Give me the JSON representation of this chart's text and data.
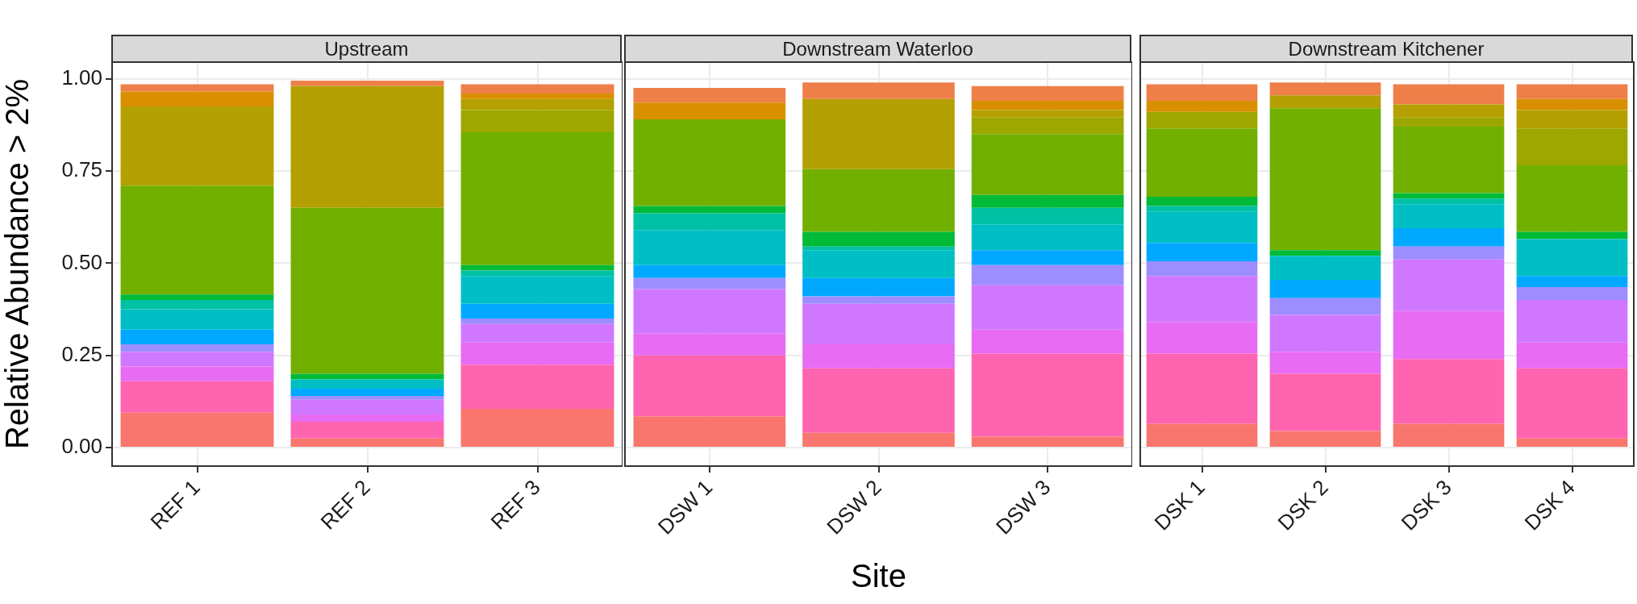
{
  "chart_data": [
    {
      "type": "bar",
      "title": "Upstream",
      "ylabel": "Relative Abundance > 2%",
      "stacked": true,
      "grid": true,
      "categories": [
        "REF 1",
        "REF 2",
        "REF 3"
      ],
      "ylim": [
        -0.05,
        1.045
      ],
      "yticks": [
        {
          "value": 0,
          "label": "0.00"
        },
        {
          "value": 0.25,
          "label": "0.25"
        },
        {
          "value": 0.5,
          "label": "0.50"
        },
        {
          "value": 0.75,
          "label": "0.75"
        },
        {
          "value": 1,
          "label": "1.00"
        }
      ],
      "series": [
        {
          "color": "#f8766d",
          "values": [
            0.095,
            0.025,
            0.105
          ]
        },
        {
          "color": "#ff64b0",
          "values": [
            0.085,
            0.045,
            0.12
          ]
        },
        {
          "color": "#e76bf3",
          "values": [
            0.04,
            0.02,
            0.06
          ]
        },
        {
          "color": "#cf78ff",
          "values": [
            0.04,
            0.04,
            0.05
          ]
        },
        {
          "color": "#9d8dff",
          "values": [
            0.02,
            0.01,
            0.015
          ]
        },
        {
          "color": "#00a9ff",
          "values": [
            0.04,
            0.02,
            0.04
          ]
        },
        {
          "color": "#00bfc4",
          "values": [
            0.055,
            0.025,
            0.075
          ]
        },
        {
          "color": "#00c1a3",
          "values": [
            0.025,
            0,
            0.015
          ]
        },
        {
          "color": "#00ba38",
          "values": [
            0.015,
            0.015,
            0.015
          ]
        },
        {
          "color": "#72b000",
          "values": [
            0.295,
            0.45,
            0.36
          ]
        },
        {
          "color": "#9da700",
          "values": [
            0,
            0,
            0.06
          ]
        },
        {
          "color": "#b4a000",
          "values": [
            0.215,
            0.33,
            0.03
          ]
        },
        {
          "color": "#d89000",
          "values": [
            0.04,
            0,
            0.015
          ]
        },
        {
          "color": "#ef7f49",
          "values": [
            0.02,
            0.015,
            0.025
          ]
        }
      ]
    },
    {
      "type": "bar",
      "title": "Downstream Waterloo",
      "xlabel": "Site",
      "stacked": true,
      "grid": true,
      "tick_labels": "x",
      "categories": [
        "DSW 1",
        "DSW 2",
        "DSW 3"
      ],
      "ylim": [
        -0.05,
        1.045
      ],
      "yticks": [
        0,
        0.25,
        0.5,
        0.75,
        1
      ],
      "series": [
        {
          "color": "#f8766d",
          "values": [
            0.085,
            0.04,
            0.03
          ]
        },
        {
          "color": "#ff64b0",
          "values": [
            0.165,
            0.175,
            0.225
          ]
        },
        {
          "color": "#e76bf3",
          "values": [
            0.06,
            0.065,
            0.065
          ]
        },
        {
          "color": "#cf78ff",
          "values": [
            0.12,
            0.11,
            0.12
          ]
        },
        {
          "color": "#9d8dff",
          "values": [
            0.03,
            0.02,
            0.055
          ]
        },
        {
          "color": "#00a9ff",
          "values": [
            0.035,
            0.05,
            0.04
          ]
        },
        {
          "color": "#00bfc4",
          "values": [
            0.095,
            0.075,
            0.07
          ]
        },
        {
          "color": "#00c1a3",
          "values": [
            0.045,
            0.01,
            0.045
          ]
        },
        {
          "color": "#00ba38",
          "values": [
            0.02,
            0.04,
            0.035
          ]
        },
        {
          "color": "#72b000",
          "values": [
            0.235,
            0.17,
            0.165
          ]
        },
        {
          "color": "#9da700",
          "values": [
            0,
            0,
            0.045
          ]
        },
        {
          "color": "#b4a000",
          "values": [
            0,
            0.19,
            0.02
          ]
        },
        {
          "color": "#d89000",
          "values": [
            0.045,
            0,
            0.025
          ]
        },
        {
          "color": "#ef7f49",
          "values": [
            0.04,
            0.045,
            0.04
          ]
        }
      ]
    },
    {
      "type": "bar",
      "title": "Downstream Kitchener",
      "stacked": true,
      "grid": true,
      "tick_labels": "x",
      "categories": [
        "DSK 1",
        "DSK 2",
        "DSK 3",
        "DSK 4"
      ],
      "ylim": [
        -0.05,
        1.045
      ],
      "yticks": [
        0,
        0.25,
        0.5,
        0.75,
        1
      ],
      "series": [
        {
          "color": "#f8766d",
          "values": [
            0.065,
            0.045,
            0.065,
            0.025
          ]
        },
        {
          "color": "#ff64b0",
          "values": [
            0.19,
            0.155,
            0.175,
            0.19
          ]
        },
        {
          "color": "#e76bf3",
          "values": [
            0.085,
            0.06,
            0.13,
            0.07
          ]
        },
        {
          "color": "#cf78ff",
          "values": [
            0.125,
            0.1,
            0.14,
            0.115
          ]
        },
        {
          "color": "#9d8dff",
          "values": [
            0.04,
            0.045,
            0.035,
            0.035
          ]
        },
        {
          "color": "#00a9ff",
          "values": [
            0.05,
            0.05,
            0.05,
            0.03
          ]
        },
        {
          "color": "#00bfc4",
          "values": [
            0.085,
            0.065,
            0.065,
            0.1
          ]
        },
        {
          "color": "#00c1a3",
          "values": [
            0.015,
            0,
            0.015,
            0
          ]
        },
        {
          "color": "#00ba38",
          "values": [
            0.025,
            0.015,
            0.015,
            0.02
          ]
        },
        {
          "color": "#72b000",
          "values": [
            0.185,
            0.385,
            0.18,
            0.18
          ]
        },
        {
          "color": "#9da700",
          "values": [
            0.045,
            0,
            0.025,
            0.1
          ]
        },
        {
          "color": "#b4a000",
          "values": [
            0,
            0.035,
            0.035,
            0.05
          ]
        },
        {
          "color": "#d89000",
          "values": [
            0.03,
            0,
            0,
            0.03
          ]
        },
        {
          "color": "#ef7f49",
          "values": [
            0.045,
            0.035,
            0.055,
            0.04
          ]
        }
      ]
    }
  ]
}
